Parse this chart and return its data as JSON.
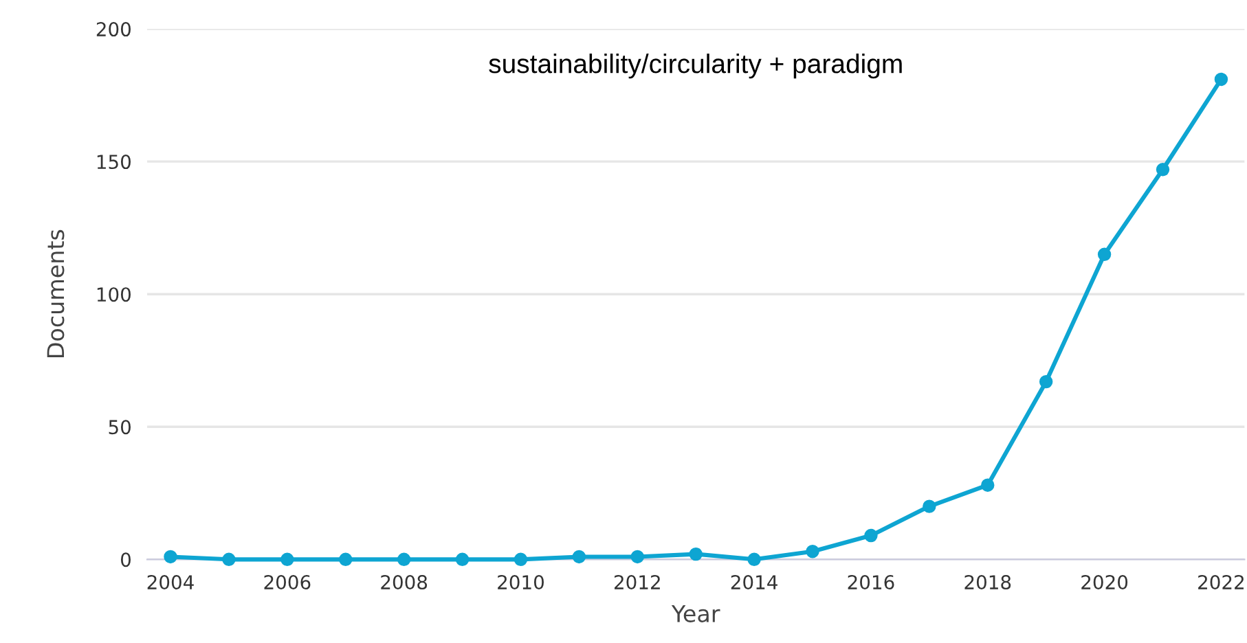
{
  "chart_data": {
    "type": "line",
    "title": "sustainability/circularity + paradigm",
    "xlabel": "Year",
    "ylabel": "Documents",
    "x": [
      2004,
      2005,
      2006,
      2007,
      2008,
      2009,
      2010,
      2011,
      2012,
      2013,
      2014,
      2015,
      2016,
      2017,
      2018,
      2019,
      2020,
      2021,
      2022
    ],
    "series": [
      {
        "color": "#0ea5d2",
        "values": [
          1,
          0,
          0,
          0,
          0,
          0,
          0,
          1,
          1,
          2,
          0,
          3,
          9,
          20,
          28,
          67,
          115,
          147,
          181
        ]
      }
    ],
    "xlim": [
      2003.6,
      2022.4
    ],
    "xticks": [
      2004,
      2006,
      2008,
      2010,
      2012,
      2014,
      2016,
      2018,
      2020,
      2022
    ],
    "ylim": [
      0,
      200
    ],
    "yticks": [
      0,
      50,
      100,
      150,
      200
    ],
    "grid": "y",
    "marker": "circle",
    "line_style": "solid"
  }
}
